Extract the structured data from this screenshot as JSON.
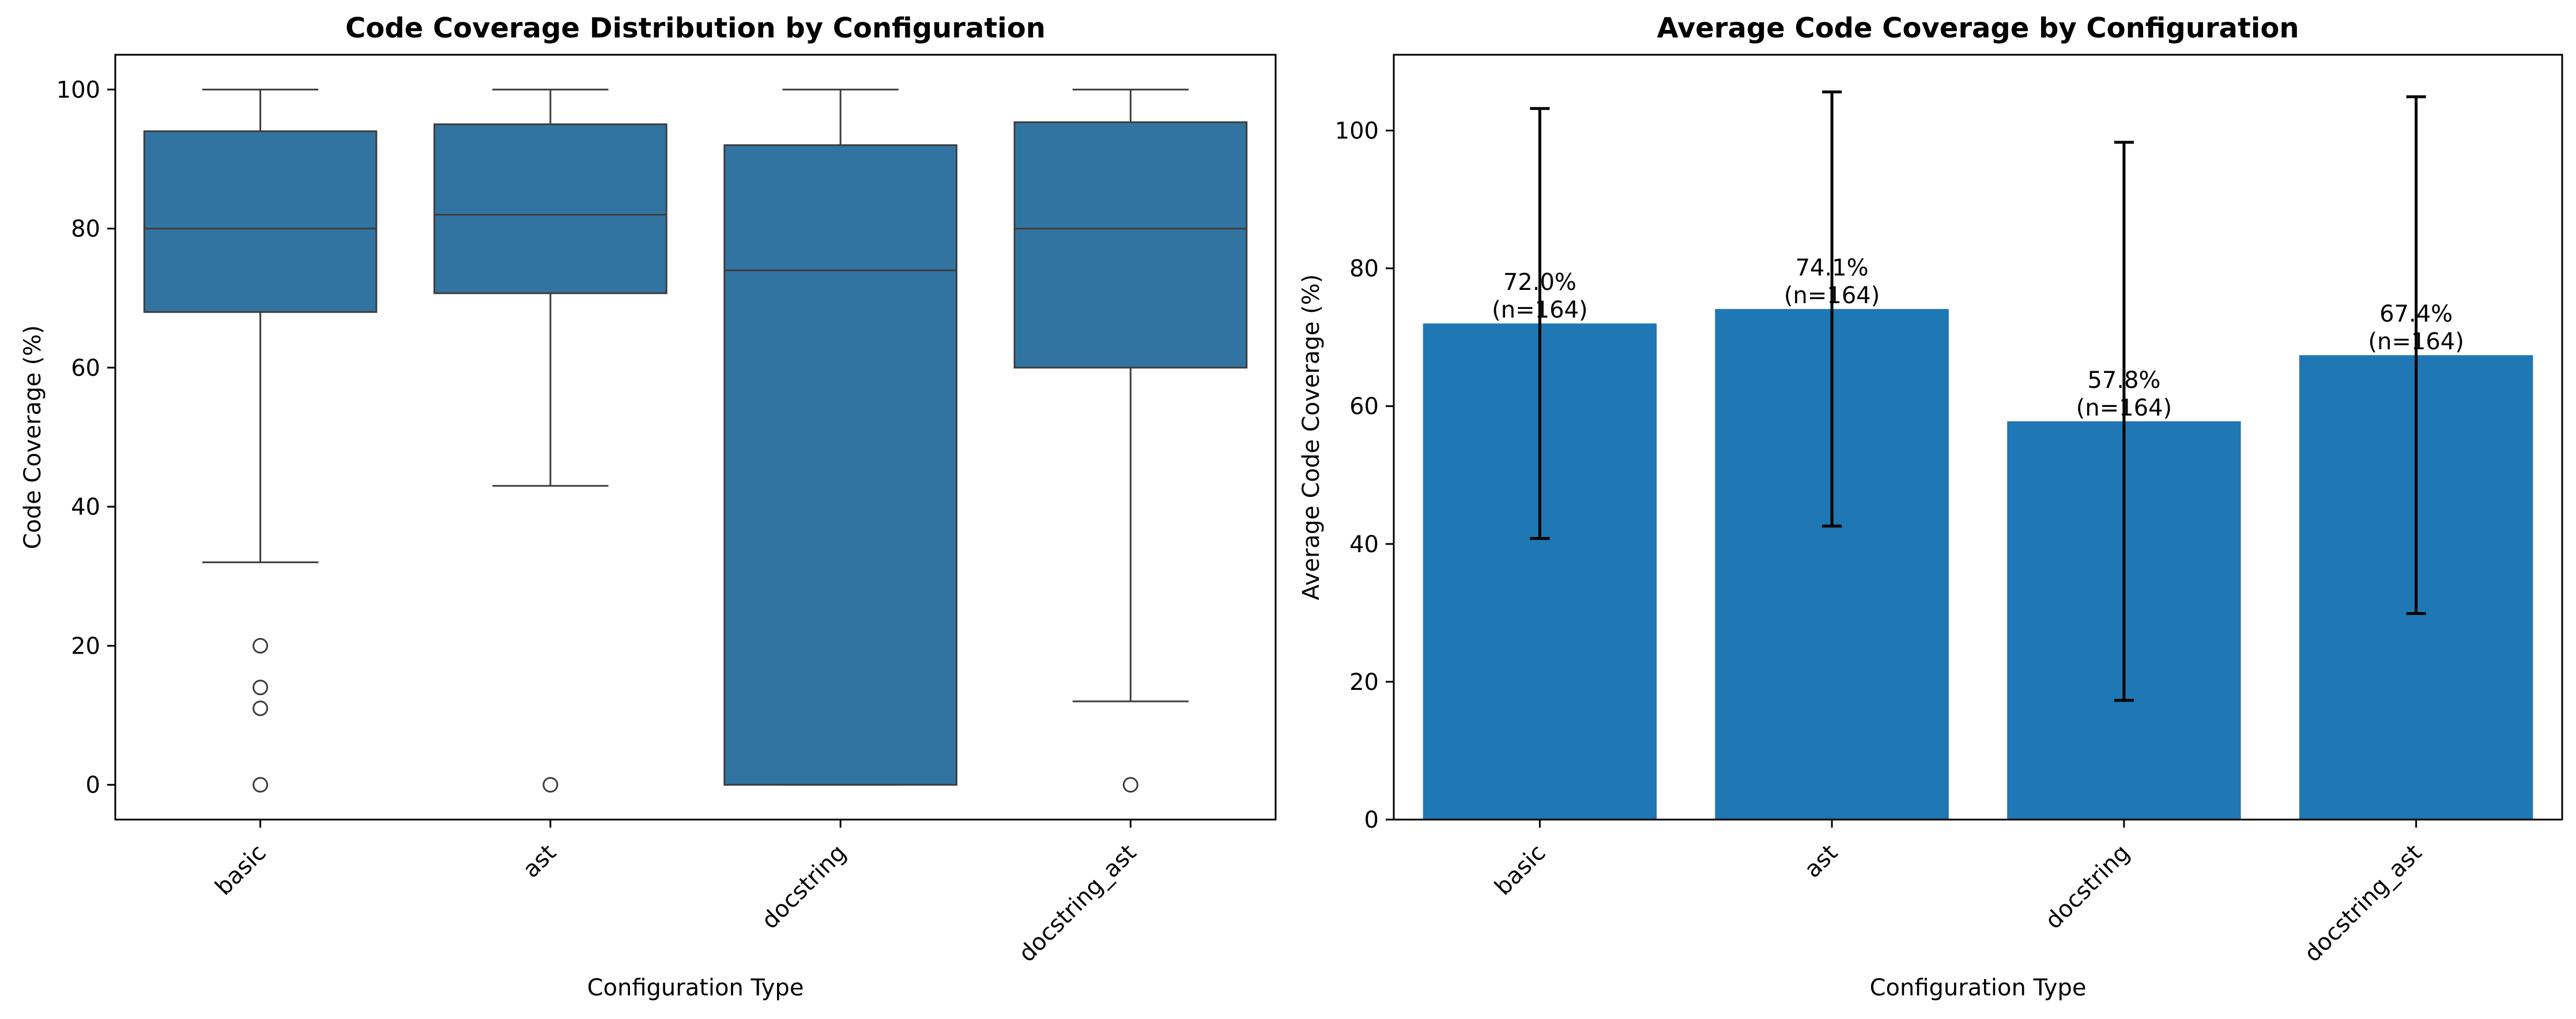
{
  "chart_data": [
    {
      "type": "box",
      "title": "Code Coverage Distribution by Configuration",
      "xlabel": "Configuration Type",
      "ylabel": "Code Coverage (%)",
      "ylim": [
        -5,
        105
      ],
      "yticks": [
        0,
        20,
        40,
        60,
        80,
        100
      ],
      "categories": [
        "basic",
        "ast",
        "docstring",
        "docstring_ast"
      ],
      "grid": false,
      "color": "#3274a1",
      "boxes": [
        {
          "whisker_low": 32,
          "q1": 68,
          "median": 80,
          "q3": 94,
          "whisker_high": 100,
          "outliers": [
            20,
            14,
            11,
            0
          ]
        },
        {
          "whisker_low": 43,
          "q1": 70.7,
          "median": 82,
          "q3": 95,
          "whisker_high": 100,
          "outliers": [
            0
          ]
        },
        {
          "whisker_low": 0,
          "q1": 0,
          "median": 74,
          "q3": 92,
          "whisker_high": 100,
          "outliers": []
        },
        {
          "whisker_low": 12,
          "q1": 60,
          "median": 80,
          "q3": 95.3,
          "whisker_high": 100,
          "outliers": [
            0
          ]
        }
      ]
    },
    {
      "type": "bar",
      "title": "Average Code Coverage by Configuration",
      "xlabel": "Configuration Type",
      "ylabel": "Average Code Coverage (%)",
      "ylim": [
        0,
        111
      ],
      "yticks": [
        0,
        20,
        40,
        60,
        80,
        100
      ],
      "categories": [
        "basic",
        "ast",
        "docstring",
        "docstring_ast"
      ],
      "values": [
        72.0,
        74.1,
        57.8,
        67.4
      ],
      "error": [
        31.2,
        31.5,
        40.5,
        37.5
      ],
      "labels": [
        "72.0%\n(n=164)",
        "74.1%\n(n=164)",
        "57.8%\n(n=164)",
        "67.4%\n(n=164)"
      ],
      "grid": false,
      "color": "#1f77b4"
    }
  ]
}
